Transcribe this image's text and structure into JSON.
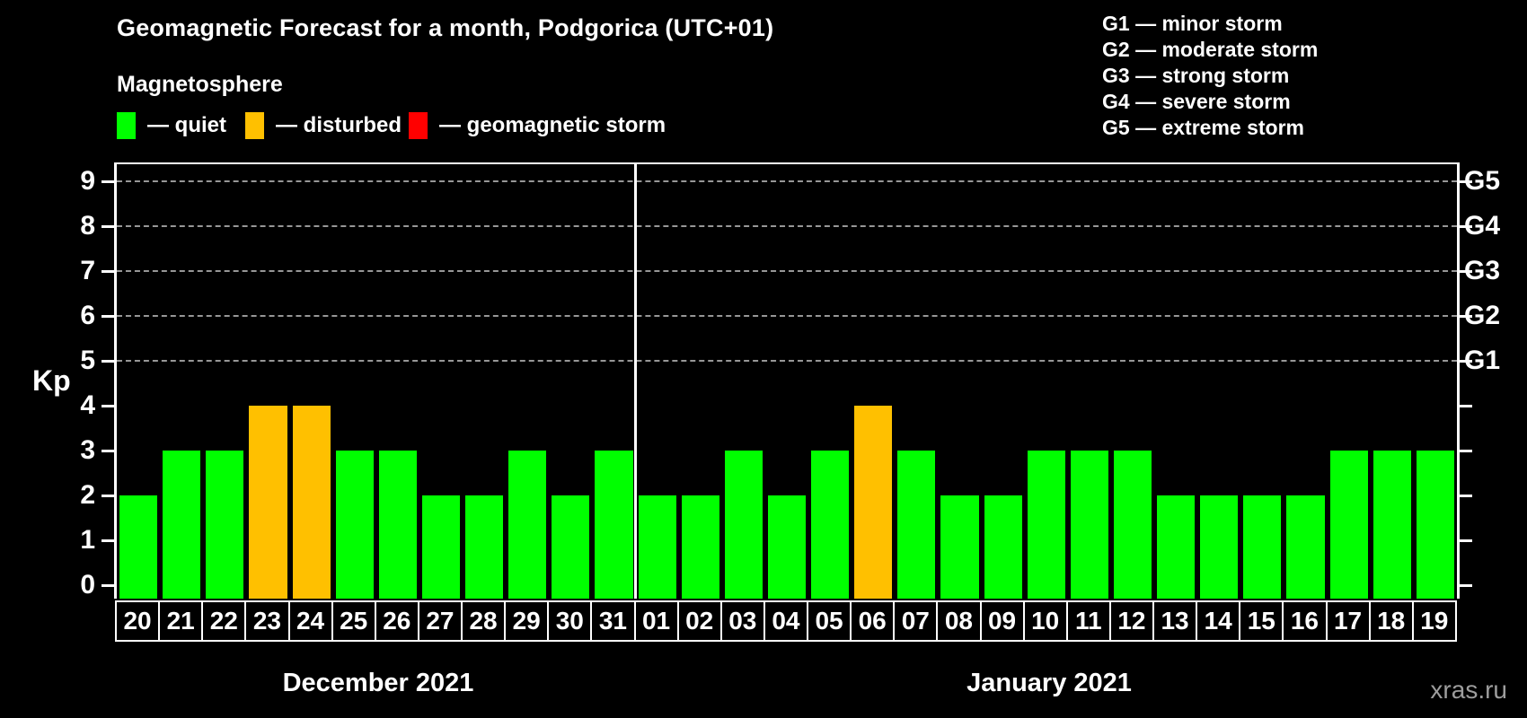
{
  "header": {
    "title": "Geomagnetic Forecast for a month, Podgorica (UTC+01)",
    "subtitle": "Magnetosphere"
  },
  "legend": {
    "items": [
      {
        "name": "quiet",
        "label": "— quiet",
        "color": "#00ff00"
      },
      {
        "name": "disturbed",
        "label": "— disturbed",
        "color": "#ffc000"
      },
      {
        "name": "storm",
        "label": "— geomagnetic storm",
        "color": "#ff0000"
      }
    ]
  },
  "g_legend": {
    "items": [
      "G1 — minor storm",
      "G2 — moderate storm",
      "G3 — strong storm",
      "G4 — severe storm",
      "G5 — extreme storm"
    ]
  },
  "watermark": "xras.ru",
  "chart_data": {
    "type": "bar",
    "title": "Geomagnetic Forecast for a month, Podgorica (UTC+01)",
    "ylabel": "Kp",
    "ylim": [
      0,
      9.4
    ],
    "y_ticks": [
      0,
      1,
      2,
      3,
      4,
      5,
      6,
      7,
      8,
      9
    ],
    "gridline_levels": [
      5,
      6,
      7,
      8,
      9
    ],
    "right_axis_labels": [
      {
        "level": 5,
        "label": "G1"
      },
      {
        "level": 6,
        "label": "G2"
      },
      {
        "level": 7,
        "label": "G3"
      },
      {
        "level": 8,
        "label": "G4"
      },
      {
        "level": 9,
        "label": "G5"
      }
    ],
    "status_colors": {
      "quiet": "#00ff00",
      "disturbed": "#ffc000",
      "storm": "#ff0000"
    },
    "groups": [
      {
        "month_label": "December 2021",
        "days": [
          "20",
          "21",
          "22",
          "23",
          "24",
          "25",
          "26",
          "27",
          "28",
          "29",
          "30",
          "31"
        ],
        "values": [
          2,
          3,
          3,
          4,
          4,
          3,
          3,
          2,
          2,
          3,
          2,
          3
        ],
        "statuses": [
          "quiet",
          "quiet",
          "quiet",
          "disturbed",
          "disturbed",
          "quiet",
          "quiet",
          "quiet",
          "quiet",
          "quiet",
          "quiet",
          "quiet"
        ]
      },
      {
        "month_label": "January 2021",
        "days": [
          "01",
          "02",
          "03",
          "04",
          "05",
          "06",
          "07",
          "08",
          "09",
          "10",
          "11",
          "12",
          "13",
          "14",
          "15",
          "16",
          "17",
          "18",
          "19"
        ],
        "values": [
          2,
          2,
          3,
          2,
          3,
          4,
          3,
          2,
          2,
          3,
          3,
          3,
          2,
          2,
          2,
          2,
          3,
          3,
          3
        ],
        "statuses": [
          "quiet",
          "quiet",
          "quiet",
          "quiet",
          "quiet",
          "disturbed",
          "quiet",
          "quiet",
          "quiet",
          "quiet",
          "quiet",
          "quiet",
          "quiet",
          "quiet",
          "quiet",
          "quiet",
          "quiet",
          "quiet",
          "quiet"
        ]
      }
    ]
  }
}
